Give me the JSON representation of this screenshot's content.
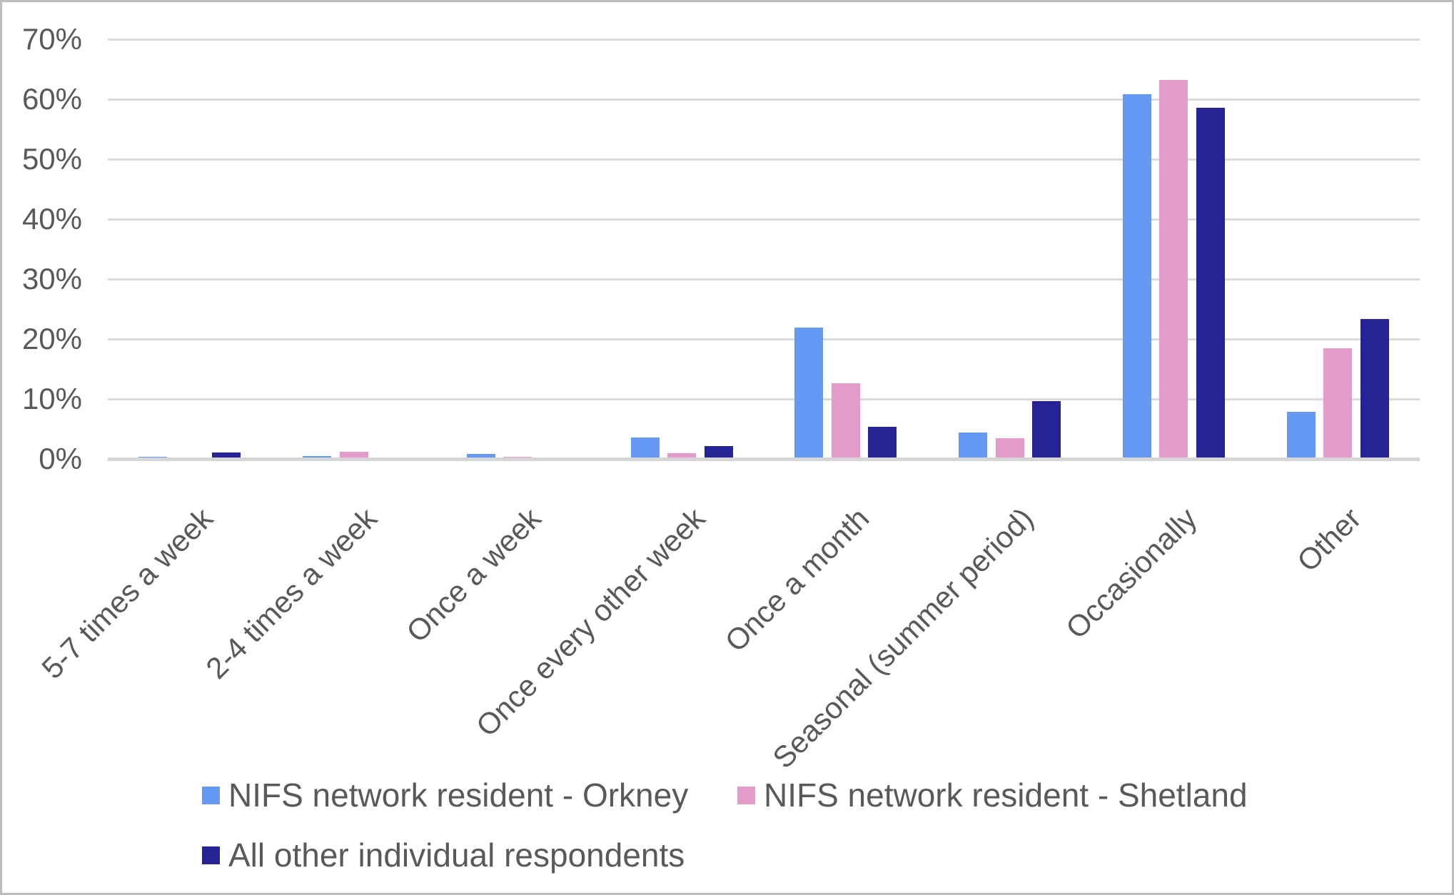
{
  "chart_data": {
    "type": "bar",
    "title": "",
    "xlabel": "",
    "ylabel": "",
    "ylim": [
      0,
      70
    ],
    "ytick_step": 10,
    "yticks": [
      "0%",
      "10%",
      "20%",
      "30%",
      "40%",
      "50%",
      "60%",
      "70%"
    ],
    "grid": true,
    "legend_position": "bottom",
    "categories": [
      "5-7 times a week",
      "2-4 times a week",
      "Once a week",
      "Once every other week",
      "Once a month",
      "Seasonal (summer period)",
      "Occasionally",
      "Other"
    ],
    "series": [
      {
        "name": "NIFS network resident - Orkney",
        "color": "#6699F5",
        "values": [
          0.4,
          0.5,
          0.8,
          3.6,
          21.9,
          4.4,
          60.8,
          7.8
        ]
      },
      {
        "name": "NIFS network resident - Shetland",
        "color": "#E39BC9",
        "values": [
          0.0,
          1.2,
          0.4,
          0.9,
          12.6,
          3.4,
          63.2,
          18.5
        ]
      },
      {
        "name": "All other individual respondents",
        "color": "#262394",
        "values": [
          1.1,
          0.0,
          0.0,
          2.2,
          5.4,
          9.6,
          58.6,
          23.3
        ]
      }
    ]
  },
  "colors": {
    "gridline": "#DADADA",
    "axis_line": "#D6D6D6",
    "text": "#595959",
    "background": "#FFFFFF",
    "border": "#BDBDBD"
  }
}
